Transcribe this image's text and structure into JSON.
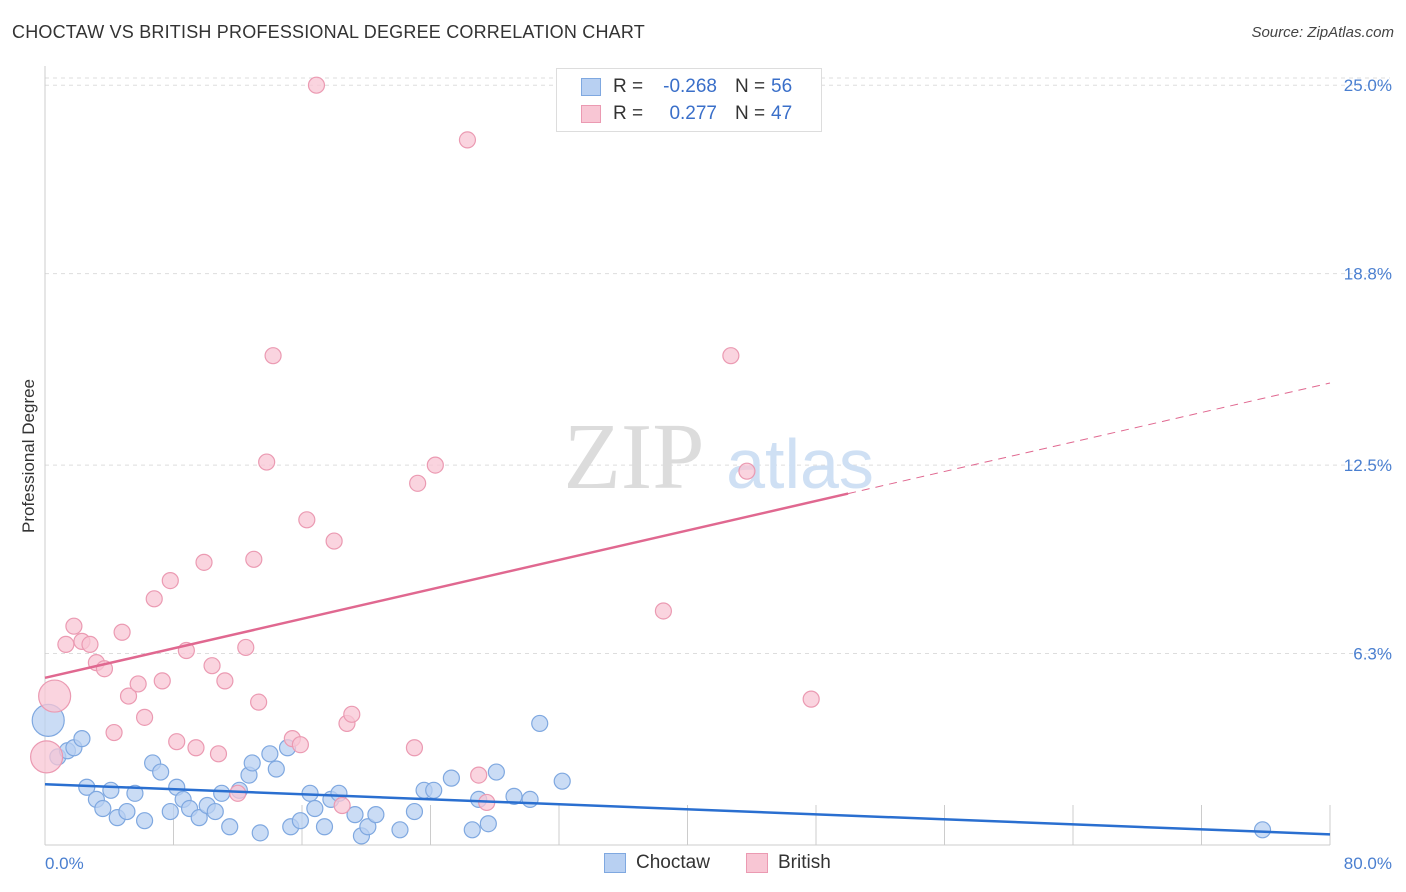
{
  "title": "CHOCTAW VS BRITISH PROFESSIONAL DEGREE CORRELATION CHART",
  "source": "Source: ZipAtlas.com",
  "watermark": {
    "zip": "ZIP",
    "atlas": "atlas"
  },
  "legend": {
    "rows": [
      {
        "r_label": "R =",
        "r_value": "-0.268",
        "n_label": "N =",
        "n_value": "56"
      },
      {
        "r_label": "R =",
        "r_value": "0.277",
        "n_label": "N =",
        "n_value": "47"
      }
    ]
  },
  "colors": {
    "choctaw_fill": "#b8d0f2",
    "choctaw_stroke": "#7fa8e0",
    "choctaw_line": "#2a6fd0",
    "british_fill": "#f8c6d4",
    "british_stroke": "#eb9ab2",
    "british_line": "#e06890",
    "grid": "#dddddd",
    "tick_text": "#4a7fd0"
  },
  "chart_data": {
    "type": "scatter",
    "title": "CHOCTAW VS BRITISH PROFESSIONAL DEGREE CORRELATION CHART",
    "xlabel": "",
    "ylabel": "Professional Degree",
    "xlim": [
      0,
      80
    ],
    "ylim": [
      0,
      25.5
    ],
    "x_tick_labels": [
      "0.0%",
      "80.0%"
    ],
    "y_ticks": [
      {
        "value": 6.3,
        "label": "6.3%"
      },
      {
        "value": 12.5,
        "label": "12.5%"
      },
      {
        "value": 18.8,
        "label": "18.8%"
      },
      {
        "value": 25.0,
        "label": "25.0%"
      }
    ],
    "legend_position": "bottom-center",
    "series": [
      {
        "name": "Choctaw",
        "r": -0.268,
        "n": 56,
        "trend": {
          "x0": 0,
          "y0": 2.0,
          "x1": 80,
          "y1": 0.35,
          "solid_to": 80
        },
        "points": [
          {
            "x": 0.2,
            "y": 4.1,
            "big": true
          },
          {
            "x": 0.8,
            "y": 2.9
          },
          {
            "x": 1.4,
            "y": 3.1
          },
          {
            "x": 1.8,
            "y": 3.2
          },
          {
            "x": 2.3,
            "y": 3.5
          },
          {
            "x": 2.6,
            "y": 1.9
          },
          {
            "x": 3.2,
            "y": 1.5
          },
          {
            "x": 3.6,
            "y": 1.2
          },
          {
            "x": 4.1,
            "y": 1.8
          },
          {
            "x": 4.5,
            "y": 0.9
          },
          {
            "x": 5.1,
            "y": 1.1
          },
          {
            "x": 5.6,
            "y": 1.7
          },
          {
            "x": 6.2,
            "y": 0.8
          },
          {
            "x": 6.7,
            "y": 2.7
          },
          {
            "x": 7.2,
            "y": 2.4
          },
          {
            "x": 7.8,
            "y": 1.1
          },
          {
            "x": 8.2,
            "y": 1.9
          },
          {
            "x": 8.6,
            "y": 1.5
          },
          {
            "x": 9.0,
            "y": 1.2
          },
          {
            "x": 9.6,
            "y": 0.9
          },
          {
            "x": 10.1,
            "y": 1.3
          },
          {
            "x": 10.6,
            "y": 1.1
          },
          {
            "x": 11.0,
            "y": 1.7
          },
          {
            "x": 11.5,
            "y": 0.6
          },
          {
            "x": 12.1,
            "y": 1.8
          },
          {
            "x": 12.7,
            "y": 2.3
          },
          {
            "x": 12.9,
            "y": 2.7
          },
          {
            "x": 13.4,
            "y": 0.4
          },
          {
            "x": 14.0,
            "y": 3.0
          },
          {
            "x": 14.4,
            "y": 2.5
          },
          {
            "x": 15.1,
            "y": 3.2
          },
          {
            "x": 15.3,
            "y": 0.6
          },
          {
            "x": 15.9,
            "y": 0.8
          },
          {
            "x": 16.5,
            "y": 1.7
          },
          {
            "x": 16.8,
            "y": 1.2
          },
          {
            "x": 17.4,
            "y": 0.6
          },
          {
            "x": 17.8,
            "y": 1.5
          },
          {
            "x": 18.3,
            "y": 1.7
          },
          {
            "x": 19.3,
            "y": 1.0
          },
          {
            "x": 19.7,
            "y": 0.3
          },
          {
            "x": 20.1,
            "y": 0.6
          },
          {
            "x": 20.6,
            "y": 1.0
          },
          {
            "x": 22.1,
            "y": 0.5
          },
          {
            "x": 23.0,
            "y": 1.1
          },
          {
            "x": 23.6,
            "y": 1.8
          },
          {
            "x": 24.2,
            "y": 1.8
          },
          {
            "x": 25.3,
            "y": 2.2
          },
          {
            "x": 26.6,
            "y": 0.5
          },
          {
            "x": 27.0,
            "y": 1.5
          },
          {
            "x": 27.6,
            "y": 0.7
          },
          {
            "x": 28.1,
            "y": 2.4
          },
          {
            "x": 29.2,
            "y": 1.6
          },
          {
            "x": 30.2,
            "y": 1.5
          },
          {
            "x": 30.8,
            "y": 4.0
          },
          {
            "x": 32.2,
            "y": 2.1
          },
          {
            "x": 75.8,
            "y": 0.5
          }
        ]
      },
      {
        "name": "British",
        "r": 0.277,
        "n": 47,
        "trend": {
          "x0": 0,
          "y0": 5.5,
          "x1": 80,
          "y1": 15.2,
          "solid_to": 50
        },
        "points": [
          {
            "x": 0.1,
            "y": 2.9,
            "big": true
          },
          {
            "x": 0.6,
            "y": 4.9,
            "big": true
          },
          {
            "x": 1.3,
            "y": 6.6
          },
          {
            "x": 1.8,
            "y": 7.2
          },
          {
            "x": 2.3,
            "y": 6.7
          },
          {
            "x": 2.8,
            "y": 6.6
          },
          {
            "x": 3.2,
            "y": 6.0
          },
          {
            "x": 3.7,
            "y": 5.8
          },
          {
            "x": 4.3,
            "y": 3.7
          },
          {
            "x": 4.8,
            "y": 7.0
          },
          {
            "x": 5.2,
            "y": 4.9
          },
          {
            "x": 5.8,
            "y": 5.3
          },
          {
            "x": 6.2,
            "y": 4.2
          },
          {
            "x": 6.8,
            "y": 8.1
          },
          {
            "x": 7.3,
            "y": 5.4
          },
          {
            "x": 7.8,
            "y": 8.7
          },
          {
            "x": 8.2,
            "y": 3.4
          },
          {
            "x": 8.8,
            "y": 6.4
          },
          {
            "x": 9.4,
            "y": 3.2
          },
          {
            "x": 9.9,
            "y": 9.3
          },
          {
            "x": 10.4,
            "y": 5.9
          },
          {
            "x": 10.8,
            "y": 3.0
          },
          {
            "x": 11.2,
            "y": 5.4
          },
          {
            "x": 12.0,
            "y": 1.7
          },
          {
            "x": 12.5,
            "y": 6.5
          },
          {
            "x": 13.0,
            "y": 9.4
          },
          {
            "x": 13.3,
            "y": 4.7
          },
          {
            "x": 13.8,
            "y": 12.6
          },
          {
            "x": 14.2,
            "y": 16.1
          },
          {
            "x": 15.4,
            "y": 3.5
          },
          {
            "x": 15.9,
            "y": 3.3
          },
          {
            "x": 16.3,
            "y": 10.7
          },
          {
            "x": 16.9,
            "y": 25.0
          },
          {
            "x": 18.0,
            "y": 10.0
          },
          {
            "x": 18.5,
            "y": 1.3
          },
          {
            "x": 18.8,
            "y": 4.0
          },
          {
            "x": 19.1,
            "y": 4.3
          },
          {
            "x": 23.0,
            "y": 3.2
          },
          {
            "x": 23.2,
            "y": 11.9
          },
          {
            "x": 24.3,
            "y": 12.5
          },
          {
            "x": 26.3,
            "y": 23.2
          },
          {
            "x": 27.0,
            "y": 2.3
          },
          {
            "x": 27.5,
            "y": 1.4
          },
          {
            "x": 38.5,
            "y": 7.7
          },
          {
            "x": 42.7,
            "y": 16.1
          },
          {
            "x": 43.7,
            "y": 12.3
          },
          {
            "x": 47.7,
            "y": 4.8
          }
        ]
      }
    ]
  }
}
